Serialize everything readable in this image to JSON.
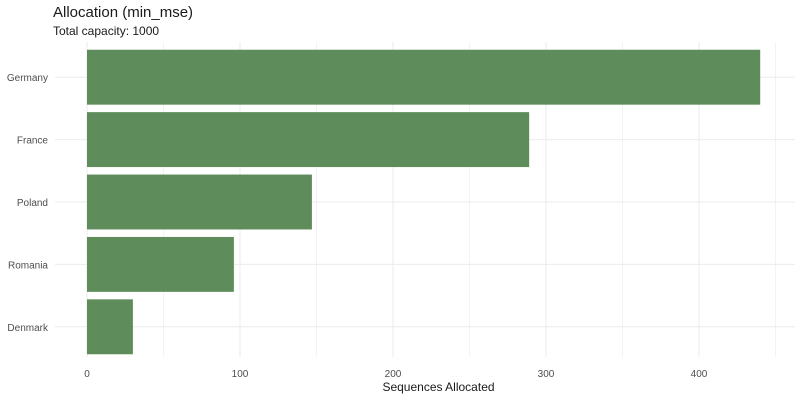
{
  "chart_data": {
    "type": "bar",
    "orientation": "horizontal",
    "title": "Allocation (min_mse)",
    "subtitle": "Total capacity: 1000",
    "xlabel": "Sequences Allocated",
    "ylabel": "",
    "categories": [
      "Germany",
      "France",
      "Poland",
      "Romania",
      "Denmark"
    ],
    "values": [
      440,
      289,
      147,
      96,
      30
    ],
    "xlim": [
      0,
      460
    ],
    "x_ticks": [
      0,
      100,
      200,
      300,
      400
    ],
    "grid": true,
    "legend": "none",
    "bar_color": "#5e8c5a",
    "grid_color": "#ebebeb"
  }
}
